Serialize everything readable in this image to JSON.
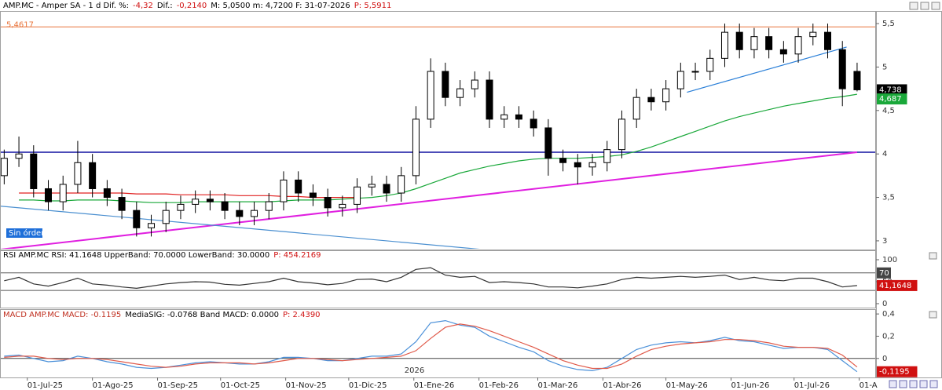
{
  "chart_data": [
    {
      "type": "candlestick",
      "header": [
        {
          "text": "AMP.MC - Amper SA -  1 d  Dif. %:",
          "color": "#000000"
        },
        {
          "text": "-4,32",
          "color": "#d01010"
        },
        {
          "text": "Dif.:",
          "color": "#000000"
        },
        {
          "text": "-0,2140",
          "color": "#d01010"
        },
        {
          "text": "M: 5,0500  m: 4,7200  F: 31-07-2026",
          "color": "#000000"
        },
        {
          "text": "P: 5,5911",
          "color": "#d01010"
        }
      ],
      "xlim": [
        "2025-06-18",
        "2026-08-09"
      ],
      "xticks": [
        {
          "value": "2025-07-01",
          "label": "01-Jul-25"
        },
        {
          "value": "2025-08-01",
          "label": "01-Ago-25"
        },
        {
          "value": "2025-09-01",
          "label": "01-Sep-25"
        },
        {
          "value": "2025-10-01",
          "label": "01-Oct-25"
        },
        {
          "value": "2025-11-01",
          "label": "01-Nov-25"
        },
        {
          "value": "2025-12-01",
          "label": "01-Dic-25"
        },
        {
          "value": "2026-01-01",
          "label": "01-Ene-26"
        },
        {
          "value": "2026-02-01",
          "label": "01-Feb-26"
        },
        {
          "value": "2026-03-01",
          "label": "01-Mar-26"
        },
        {
          "value": "2026-04-01",
          "label": "01-Abr-26"
        },
        {
          "value": "2026-05-01",
          "label": "01-May-26"
        },
        {
          "value": "2026-06-01",
          "label": "01-Jun-26"
        },
        {
          "value": "2026-07-01",
          "label": "01-Jul-26"
        },
        {
          "value": "2026-08-01",
          "label": "01-A"
        }
      ],
      "year_label": {
        "value": "2026-01-01",
        "label": "2026"
      },
      "ylim": [
        2.9,
        5.645
      ],
      "yticks": [
        3,
        {
          "value": 3.5,
          "label": "3,5"
        },
        4,
        {
          "value": 4.5,
          "label": "4,5"
        },
        5,
        {
          "value": 5.5,
          "label": "5,5"
        }
      ],
      "x": [
        "2025-06-20",
        "2025-06-27",
        "2025-07-04",
        "2025-07-11",
        "2025-07-18",
        "2025-07-25",
        "2025-08-01",
        "2025-08-08",
        "2025-08-15",
        "2025-08-22",
        "2025-08-29",
        "2025-09-05",
        "2025-09-12",
        "2025-09-19",
        "2025-09-26",
        "2025-10-03",
        "2025-10-10",
        "2025-10-17",
        "2025-10-24",
        "2025-10-31",
        "2025-11-07",
        "2025-11-14",
        "2025-11-21",
        "2025-11-28",
        "2025-12-05",
        "2025-12-12",
        "2025-12-19",
        "2025-12-26",
        "2026-01-02",
        "2026-01-09",
        "2026-01-16",
        "2026-01-23",
        "2026-01-30",
        "2026-02-06",
        "2026-02-13",
        "2026-02-20",
        "2026-02-27",
        "2026-03-06",
        "2026-03-13",
        "2026-03-20",
        "2026-03-27",
        "2026-04-03",
        "2026-04-10",
        "2026-04-17",
        "2026-04-24",
        "2026-05-01",
        "2026-05-08",
        "2026-05-15",
        "2026-05-22",
        "2026-05-29",
        "2026-06-05",
        "2026-06-12",
        "2026-06-19",
        "2026-06-26",
        "2026-07-03",
        "2026-07-10",
        "2026-07-17",
        "2026-07-24",
        "2026-07-31"
      ],
      "open": [
        3.75,
        3.95,
        4.0,
        3.6,
        3.45,
        3.65,
        3.9,
        3.6,
        3.5,
        3.35,
        3.15,
        3.2,
        3.35,
        3.42,
        3.48,
        3.45,
        3.35,
        3.28,
        3.35,
        3.45,
        3.7,
        3.55,
        3.5,
        3.38,
        3.42,
        3.62,
        3.65,
        3.55,
        3.75,
        4.4,
        4.95,
        4.65,
        4.75,
        4.85,
        4.4,
        4.45,
        4.4,
        4.3,
        3.95,
        3.9,
        3.85,
        3.9,
        4.05,
        4.4,
        4.65,
        4.6,
        4.75,
        4.95,
        4.95,
        5.1,
        5.4,
        5.2,
        5.35,
        5.2,
        5.15,
        5.35,
        5.4,
        5.2,
        4.95
      ],
      "high": [
        4.05,
        4.2,
        4.1,
        3.7,
        3.75,
        4.15,
        4.0,
        3.7,
        3.6,
        3.45,
        3.3,
        3.45,
        3.52,
        3.58,
        3.58,
        3.55,
        3.45,
        3.45,
        3.55,
        3.8,
        3.8,
        3.65,
        3.6,
        3.52,
        3.72,
        3.75,
        3.75,
        3.85,
        4.55,
        5.1,
        5.05,
        4.85,
        4.95,
        4.95,
        4.55,
        4.55,
        4.5,
        4.4,
        4.05,
        4.0,
        4.0,
        4.15,
        4.5,
        4.75,
        4.75,
        4.85,
        5.05,
        5.05,
        5.2,
        5.5,
        5.5,
        5.45,
        5.45,
        5.3,
        5.45,
        5.5,
        5.5,
        5.3,
        5.05
      ],
      "low": [
        3.65,
        3.85,
        3.5,
        3.35,
        3.35,
        3.55,
        3.5,
        3.4,
        3.25,
        3.05,
        3.05,
        3.1,
        3.25,
        3.32,
        3.35,
        3.25,
        3.18,
        3.18,
        3.25,
        3.35,
        3.45,
        3.4,
        3.28,
        3.28,
        3.32,
        3.52,
        3.45,
        3.45,
        3.65,
        4.3,
        4.55,
        4.55,
        4.65,
        4.3,
        4.3,
        4.3,
        4.2,
        3.75,
        3.8,
        3.65,
        3.75,
        3.8,
        3.95,
        4.3,
        4.5,
        4.5,
        4.65,
        4.85,
        4.85,
        5.0,
        5.1,
        5.1,
        5.1,
        5.05,
        5.05,
        5.25,
        5.1,
        4.55,
        4.72
      ],
      "close": [
        3.95,
        4.0,
        3.6,
        3.45,
        3.65,
        3.9,
        3.6,
        3.5,
        3.35,
        3.15,
        3.2,
        3.35,
        3.42,
        3.48,
        3.45,
        3.35,
        3.28,
        3.35,
        3.45,
        3.7,
        3.55,
        3.5,
        3.38,
        3.42,
        3.62,
        3.65,
        3.55,
        3.75,
        4.4,
        4.95,
        4.65,
        4.75,
        4.85,
        4.4,
        4.45,
        4.4,
        4.3,
        3.95,
        3.9,
        3.85,
        3.9,
        4.05,
        4.4,
        4.65,
        4.6,
        4.75,
        4.95,
        4.95,
        5.1,
        5.4,
        5.2,
        5.35,
        5.2,
        5.15,
        5.35,
        5.4,
        5.2,
        4.75,
        4.738
      ],
      "series": [
        {
          "color": "#1aa83a",
          "values": [
            null,
            3.47,
            3.47,
            3.46,
            3.46,
            3.47,
            3.47,
            3.47,
            3.46,
            3.45,
            3.44,
            3.44,
            3.44,
            3.45,
            3.45,
            3.45,
            3.45,
            3.45,
            3.45,
            3.46,
            3.47,
            3.47,
            3.47,
            3.48,
            3.49,
            3.5,
            3.52,
            3.55,
            3.6,
            3.66,
            3.72,
            3.78,
            3.82,
            3.86,
            3.89,
            3.92,
            3.94,
            3.95,
            3.95,
            3.95,
            3.96,
            3.97,
            3.99,
            4.03,
            4.08,
            4.14,
            4.2,
            4.26,
            4.32,
            4.38,
            4.43,
            4.47,
            4.51,
            4.55,
            4.58,
            4.61,
            4.64,
            4.66,
            4.687
          ]
        },
        {
          "color": "#e02020",
          "values": [
            null,
            3.55,
            3.55,
            3.55,
            3.55,
            3.55,
            3.55,
            3.55,
            3.55,
            3.54,
            3.54,
            3.54,
            3.53,
            3.53,
            3.53,
            3.53,
            3.52,
            3.52,
            3.52,
            3.51,
            3.51,
            3.5,
            3.5,
            3.5,
            3.5,
            null,
            null,
            null,
            null,
            null,
            null,
            null,
            null,
            null,
            null,
            null,
            null,
            null,
            null,
            null,
            null,
            null,
            null,
            null,
            null,
            null,
            null,
            null,
            null,
            null,
            null,
            null,
            null,
            null,
            null,
            null,
            null,
            null,
            null
          ]
        }
      ],
      "levels": [
        {
          "value": 5.4617,
          "label": "5,4617",
          "color": "#e8743b"
        },
        {
          "value": 4.02,
          "color": "#1010a0"
        }
      ],
      "trendlines": [
        {
          "from": [
            "2025-06-18",
            2.9
          ],
          "to": [
            "2026-07-31",
            4.02
          ],
          "color": "#e020e0"
        },
        {
          "from": [
            "2025-06-18",
            3.4
          ],
          "to": [
            "2026-02-03",
            2.9
          ],
          "color": "#4a8fd0"
        },
        {
          "from": [
            "2026-05-11",
            4.71
          ],
          "to": [
            "2026-07-26",
            5.23
          ],
          "color": "#2a7fd8"
        }
      ],
      "annotation": "Sin órdenes",
      "tags": [
        {
          "value": 4.738,
          "label": "4,738",
          "color": "#000000"
        },
        {
          "value": 4.687,
          "label": "4,687",
          "color": "#1aa83a"
        }
      ]
    },
    {
      "type": "line",
      "header": [
        {
          "text": "RSI AMP.MC RSI: 41.1648 UpperBand: 70.0000 LowerBand: 30.0000",
          "color": "#000000"
        },
        {
          "text": "P: 454.2169",
          "color": "#d01010"
        }
      ],
      "ylim": [
        -9,
        119.6
      ],
      "yticks": [
        0,
        50,
        100
      ],
      "bands": [
        70,
        30
      ],
      "series": [
        {
          "color": "#333333",
          "values": [
            52,
            60,
            45,
            40,
            48,
            58,
            45,
            42,
            38,
            35,
            40,
            45,
            48,
            50,
            49,
            44,
            42,
            46,
            50,
            58,
            50,
            47,
            43,
            46,
            55,
            56,
            50,
            60,
            78,
            82,
            65,
            60,
            62,
            48,
            50,
            48,
            45,
            38,
            38,
            36,
            40,
            45,
            55,
            60,
            58,
            60,
            62,
            60,
            62,
            65,
            55,
            60,
            54,
            52,
            58,
            58,
            50,
            38,
            41.1648
          ]
        }
      ],
      "tags": [
        {
          "value": 41.1648,
          "label": "41,1648",
          "color": "#d01010"
        }
      ]
    },
    {
      "type": "line",
      "header": [
        {
          "text": "MACD AMP.MC MACD: -0.1195",
          "color": "#c03020"
        },
        {
          "text": "MediaSIG: -0.0768 Band MACD: 0.0000",
          "color": "#000000"
        },
        {
          "text": "P: 2.4390",
          "color": "#d01010"
        }
      ],
      "ylim": [
        -0.171,
        0.436
      ],
      "yticks": [
        0,
        {
          "value": 0.2,
          "label": "0,2"
        },
        {
          "value": 0.4,
          "label": "0,4"
        }
      ],
      "series": [
        {
          "color": "#4a90d9",
          "values": [
            0.02,
            0.03,
            0.0,
            -0.03,
            -0.02,
            0.02,
            0.0,
            -0.03,
            -0.05,
            -0.08,
            -0.09,
            -0.08,
            -0.06,
            -0.04,
            -0.03,
            -0.04,
            -0.05,
            -0.05,
            -0.03,
            0.01,
            0.01,
            0.0,
            -0.02,
            -0.02,
            0.0,
            0.02,
            0.02,
            0.04,
            0.15,
            0.32,
            0.34,
            0.3,
            0.28,
            0.2,
            0.15,
            0.1,
            0.06,
            -0.02,
            -0.07,
            -0.1,
            -0.11,
            -0.08,
            0.0,
            0.08,
            0.12,
            0.14,
            0.15,
            0.14,
            0.16,
            0.19,
            0.16,
            0.15,
            0.12,
            0.09,
            0.1,
            0.1,
            0.08,
            -0.02,
            -0.1195
          ]
        },
        {
          "color": "#e05a4a",
          "values": [
            0.01,
            0.02,
            0.02,
            0.0,
            -0.01,
            0.0,
            0.0,
            -0.01,
            -0.03,
            -0.05,
            -0.07,
            -0.08,
            -0.07,
            -0.05,
            -0.04,
            -0.04,
            -0.04,
            -0.05,
            -0.04,
            -0.02,
            0.0,
            0.0,
            -0.01,
            -0.02,
            -0.01,
            0.0,
            0.01,
            0.02,
            0.07,
            0.18,
            0.28,
            0.31,
            0.29,
            0.25,
            0.2,
            0.15,
            0.1,
            0.04,
            -0.02,
            -0.06,
            -0.09,
            -0.09,
            -0.05,
            0.02,
            0.08,
            0.11,
            0.13,
            0.14,
            0.15,
            0.17,
            0.17,
            0.16,
            0.14,
            0.11,
            0.1,
            0.1,
            0.09,
            0.03,
            -0.0768
          ]
        }
      ],
      "tags": [
        {
          "value": -0.1195,
          "label": "-0,1195",
          "color": "#d01010"
        }
      ]
    }
  ]
}
